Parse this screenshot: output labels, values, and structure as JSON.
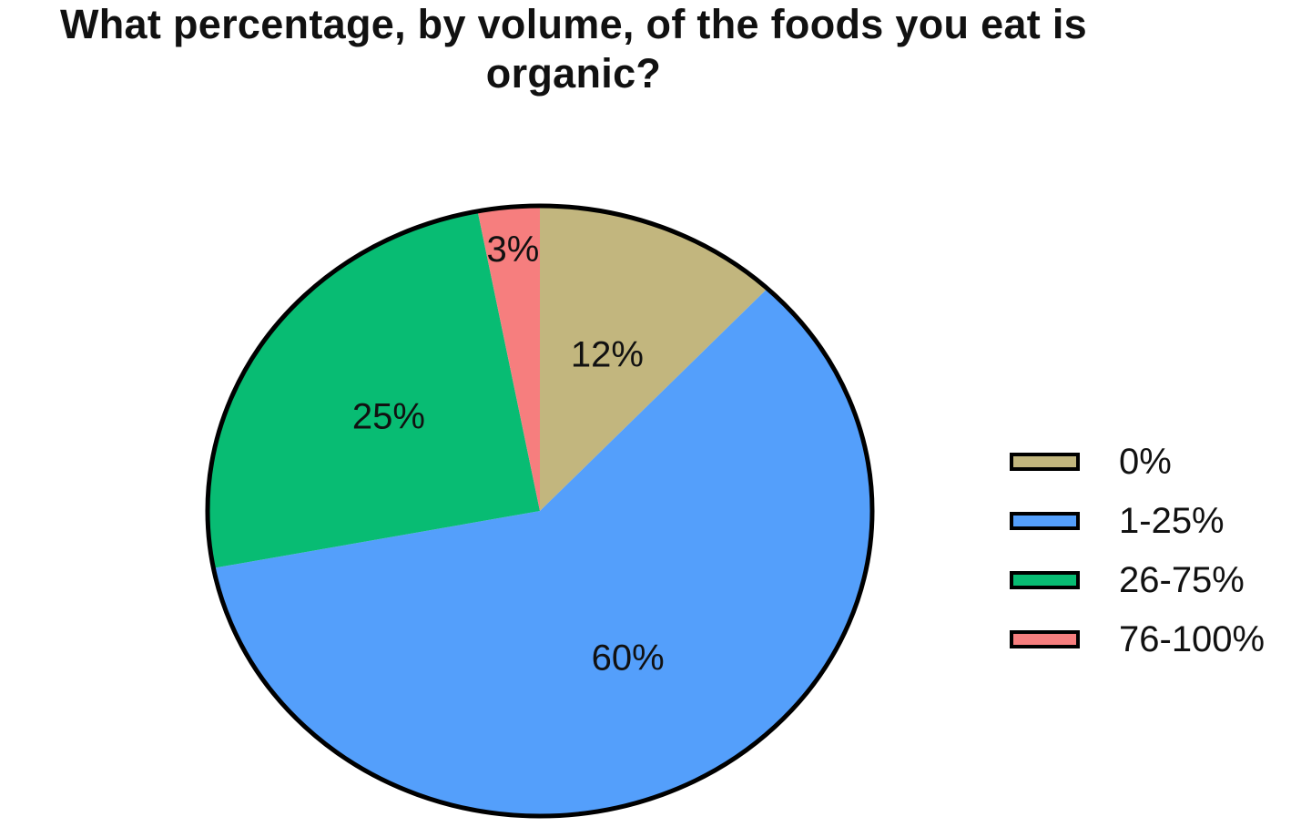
{
  "chart_data": {
    "type": "pie",
    "title": "What percentage, by volume, of the foods you eat is organic?",
    "categories": [
      "0%",
      "1-25%",
      "26-75%",
      "76-100%"
    ],
    "values": [
      12,
      60,
      25,
      3
    ],
    "data_labels": [
      "12%",
      "60%",
      "25%",
      "3%"
    ],
    "colors": [
      "#C2B67E",
      "#549FFB",
      "#08BC73",
      "#F67E7E"
    ],
    "start_angle_deg": 0,
    "direction": "clockwise",
    "legend": {
      "position": "right",
      "entries": [
        "0%",
        "1-25%",
        "26-75%",
        "76-100%"
      ]
    },
    "outline_color": "#000000"
  }
}
